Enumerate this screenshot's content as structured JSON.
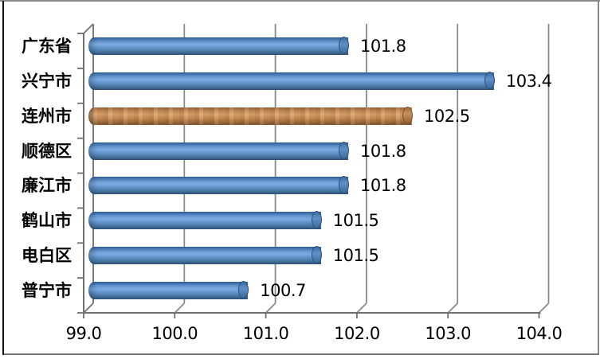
{
  "chart_data": {
    "type": "bar",
    "orientation": "horizontal",
    "style": "3d-cylinder",
    "title": "",
    "categories": [
      "广东省",
      "兴宁市",
      "连州市",
      "顺德区",
      "廉江市",
      "鹤山市",
      "电白区",
      "普宁市"
    ],
    "values": [
      101.8,
      103.4,
      102.5,
      101.8,
      101.8,
      101.5,
      101.5,
      100.7
    ],
    "data_labels": [
      "101.8",
      "103.4",
      "102.5",
      "101.8",
      "101.8",
      "101.5",
      "101.5",
      "100.7"
    ],
    "x_ticks": [
      "99.0",
      "100.0",
      "101.0",
      "102.0",
      "103.0",
      "104.0"
    ],
    "x_tick_values": [
      99,
      100,
      101,
      102,
      103,
      104
    ],
    "xlim": [
      99.0,
      104.0
    ],
    "grid": true,
    "legend": "none",
    "highlight_index": 2,
    "colors": {
      "bar_default": "#4f81bd",
      "bar_highlight": "#c8894f",
      "gridline": "#8a8a8a",
      "axis": "#6f6f6f",
      "text": "#000000"
    }
  }
}
